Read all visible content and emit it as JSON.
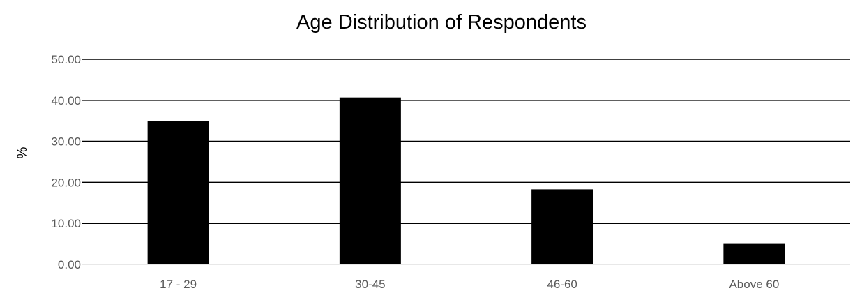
{
  "chart_data": {
    "type": "bar",
    "title": "Age Distribution of Respondents",
    "xlabel": "",
    "ylabel": "%",
    "categories": [
      "17 - 29",
      "30-45",
      "46-60",
      "Above 60"
    ],
    "values": [
      35.0,
      40.7,
      18.3,
      5.0
    ],
    "ylim": [
      0,
      50
    ],
    "yticks": [
      "0.00",
      "10.00",
      "20.00",
      "30.00",
      "40.00",
      "50.00"
    ],
    "grid": true,
    "legend": "none",
    "bar_color": "#000000",
    "grid_color": "#000000",
    "tick_label_color": "#595959"
  }
}
